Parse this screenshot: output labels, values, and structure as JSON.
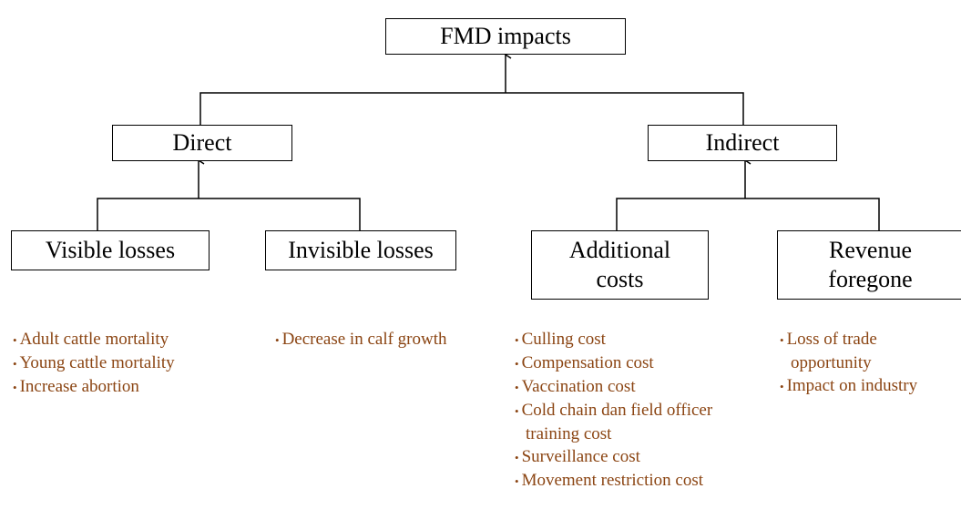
{
  "nodes": [
    {
      "label": "FMD impacts"
    },
    {
      "label": "Direct"
    },
    {
      "label": "Indirect"
    },
    {
      "label": "Visible losses"
    },
    {
      "label": "Invisible losses"
    },
    {
      "label": "Additional costs"
    },
    {
      "label": "Revenue foregone"
    }
  ],
  "lists": [
    {
      "items": [
        "Adult cattle mortality",
        "Young cattle mortality",
        "Increase abortion"
      ]
    },
    {
      "items": [
        "Decrease in calf growth"
      ]
    },
    {
      "items": [
        "Culling cost",
        "Compensation cost",
        "Vaccination cost",
        "Cold chain dan field officer training cost",
        "Surveillance cost",
        "Movement restriction cost"
      ]
    },
    {
      "items": [
        "Loss of trade opportunity",
        "Impact on industry"
      ]
    }
  ]
}
